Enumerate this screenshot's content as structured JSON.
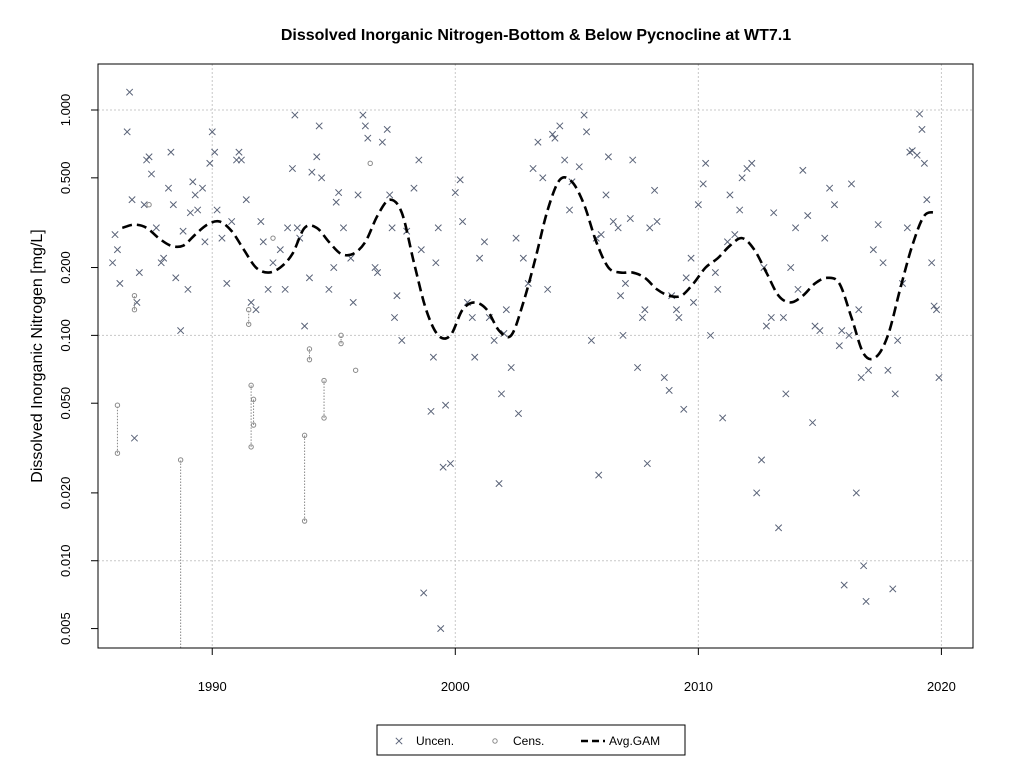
{
  "chart_data": {
    "type": "scatter",
    "title": "Dissolved Inorganic Nitrogen-Bottom & Below Pycnocline at WT7.1",
    "xlabel": "",
    "ylabel": "Dissolved Inorganic Nitrogen [mg/L]",
    "xlim": [
      1985.3,
      2021.3
    ],
    "ylim": [
      0.0041,
      1.6
    ],
    "y_scale": "log",
    "grid": true,
    "legend_position": "bottom-center",
    "x_ticks": [
      1990,
      2000,
      2010,
      2020
    ],
    "x_tick_labels": [
      "1990",
      "2000",
      "2010",
      "2020"
    ],
    "y_ticks": [
      0.005,
      0.01,
      0.02,
      0.05,
      0.1,
      0.2,
      0.5,
      1.0
    ],
    "y_tick_labels": [
      "0.005",
      "0.010",
      "0.020",
      "0.050",
      "0.100",
      "0.200",
      "0.500",
      "1.000"
    ],
    "legend": [
      {
        "label": "Uncen.",
        "symbol": "cross"
      },
      {
        "label": "Cens.",
        "symbol": "circle"
      },
      {
        "label": "Avg.GAM",
        "symbol": "dashed-line"
      }
    ],
    "colors": {
      "points": "#5a6378",
      "censored": "#8a8a8a",
      "gam": "#000000",
      "grid": "#c8c8c8"
    },
    "series": [
      {
        "name": "Uncen.",
        "points": [
          [
            1985.9,
            0.21
          ],
          [
            1986.0,
            0.28
          ],
          [
            1986.1,
            0.24
          ],
          [
            1986.2,
            0.17
          ],
          [
            1986.5,
            0.8
          ],
          [
            1986.6,
            1.2
          ],
          [
            1986.7,
            0.4
          ],
          [
            1986.8,
            0.035
          ],
          [
            1986.9,
            0.14
          ],
          [
            1987.0,
            0.19
          ],
          [
            1987.2,
            0.38
          ],
          [
            1987.3,
            0.6
          ],
          [
            1987.4,
            0.62
          ],
          [
            1987.5,
            0.52
          ],
          [
            1987.7,
            0.3
          ],
          [
            1987.9,
            0.21
          ],
          [
            1988.0,
            0.22
          ],
          [
            1988.2,
            0.45
          ],
          [
            1988.3,
            0.65
          ],
          [
            1988.4,
            0.38
          ],
          [
            1988.5,
            0.18
          ],
          [
            1988.7,
            0.105
          ],
          [
            1988.8,
            0.29
          ],
          [
            1989.0,
            0.16
          ],
          [
            1989.1,
            0.35
          ],
          [
            1989.2,
            0.48
          ],
          [
            1989.3,
            0.42
          ],
          [
            1989.4,
            0.36
          ],
          [
            1989.6,
            0.45
          ],
          [
            1989.7,
            0.26
          ],
          [
            1989.9,
            0.58
          ],
          [
            1990.0,
            0.8
          ],
          [
            1990.1,
            0.65
          ],
          [
            1990.2,
            0.36
          ],
          [
            1990.4,
            0.27
          ],
          [
            1990.6,
            0.17
          ],
          [
            1990.8,
            0.32
          ],
          [
            1991.0,
            0.6
          ],
          [
            1991.1,
            0.65
          ],
          [
            1991.2,
            0.6
          ],
          [
            1991.4,
            0.4
          ],
          [
            1991.6,
            0.14
          ],
          [
            1991.8,
            0.13
          ],
          [
            1992.0,
            0.32
          ],
          [
            1992.1,
            0.26
          ],
          [
            1992.3,
            0.16
          ],
          [
            1992.5,
            0.21
          ],
          [
            1992.8,
            0.24
          ],
          [
            1993.0,
            0.16
          ],
          [
            1993.1,
            0.3
          ],
          [
            1993.3,
            0.55
          ],
          [
            1993.4,
            0.95
          ],
          [
            1993.5,
            0.3
          ],
          [
            1993.6,
            0.27
          ],
          [
            1993.8,
            0.11
          ],
          [
            1994.0,
            0.18
          ],
          [
            1994.1,
            0.53
          ],
          [
            1994.3,
            0.62
          ],
          [
            1994.4,
            0.85
          ],
          [
            1994.5,
            0.5
          ],
          [
            1994.8,
            0.16
          ],
          [
            1995.0,
            0.2
          ],
          [
            1995.1,
            0.39
          ],
          [
            1995.2,
            0.43
          ],
          [
            1995.4,
            0.3
          ],
          [
            1995.7,
            0.22
          ],
          [
            1995.8,
            0.14
          ],
          [
            1996.0,
            0.42
          ],
          [
            1996.2,
            0.95
          ],
          [
            1996.3,
            0.85
          ],
          [
            1996.4,
            0.75
          ],
          [
            1996.7,
            0.2
          ],
          [
            1996.8,
            0.19
          ],
          [
            1997.0,
            0.72
          ],
          [
            1997.2,
            0.82
          ],
          [
            1997.3,
            0.42
          ],
          [
            1997.4,
            0.3
          ],
          [
            1997.5,
            0.12
          ],
          [
            1997.6,
            0.15
          ],
          [
            1997.8,
            0.095
          ],
          [
            1998.0,
            0.29
          ],
          [
            1998.3,
            0.45
          ],
          [
            1998.5,
            0.6
          ],
          [
            1998.6,
            0.24
          ],
          [
            1998.7,
            0.0072
          ],
          [
            1999.0,
            0.046
          ],
          [
            1999.1,
            0.08
          ],
          [
            1999.2,
            0.21
          ],
          [
            1999.3,
            0.3
          ],
          [
            1999.4,
            0.005
          ],
          [
            1999.5,
            0.026
          ],
          [
            1999.6,
            0.049
          ],
          [
            1999.8,
            0.027
          ],
          [
            2000.0,
            0.43
          ],
          [
            2000.2,
            0.49
          ],
          [
            2000.3,
            0.32
          ],
          [
            2000.5,
            0.14
          ],
          [
            2000.7,
            0.12
          ],
          [
            2000.8,
            0.08
          ],
          [
            2001.0,
            0.22
          ],
          [
            2001.2,
            0.26
          ],
          [
            2001.4,
            0.12
          ],
          [
            2001.6,
            0.095
          ],
          [
            2001.8,
            0.022
          ],
          [
            2001.9,
            0.055
          ],
          [
            2002.0,
            0.102
          ],
          [
            2002.1,
            0.13
          ],
          [
            2002.3,
            0.072
          ],
          [
            2002.5,
            0.27
          ],
          [
            2002.6,
            0.045
          ],
          [
            2002.8,
            0.22
          ],
          [
            2003.0,
            0.17
          ],
          [
            2003.2,
            0.55
          ],
          [
            2003.4,
            0.72
          ],
          [
            2003.6,
            0.5
          ],
          [
            2003.8,
            0.16
          ],
          [
            2004.0,
            0.78
          ],
          [
            2004.1,
            0.75
          ],
          [
            2004.3,
            0.85
          ],
          [
            2004.5,
            0.6
          ],
          [
            2004.7,
            0.36
          ],
          [
            2004.8,
            0.48
          ],
          [
            2005.1,
            0.56
          ],
          [
            2005.3,
            0.95
          ],
          [
            2005.4,
            0.8
          ],
          [
            2005.6,
            0.095
          ],
          [
            2005.8,
            0.27
          ],
          [
            2005.9,
            0.024
          ],
          [
            2006.0,
            0.28
          ],
          [
            2006.2,
            0.42
          ],
          [
            2006.3,
            0.62
          ],
          [
            2006.5,
            0.32
          ],
          [
            2006.7,
            0.3
          ],
          [
            2006.8,
            0.15
          ],
          [
            2006.9,
            0.1
          ],
          [
            2007.0,
            0.17
          ],
          [
            2007.2,
            0.33
          ],
          [
            2007.3,
            0.6
          ],
          [
            2007.5,
            0.072
          ],
          [
            2007.7,
            0.12
          ],
          [
            2007.8,
            0.13
          ],
          [
            2007.9,
            0.027
          ],
          [
            2008.0,
            0.3
          ],
          [
            2008.2,
            0.44
          ],
          [
            2008.3,
            0.32
          ],
          [
            2008.6,
            0.065
          ],
          [
            2008.8,
            0.057
          ],
          [
            2008.9,
            0.15
          ],
          [
            2009.1,
            0.13
          ],
          [
            2009.2,
            0.12
          ],
          [
            2009.4,
            0.047
          ],
          [
            2009.5,
            0.18
          ],
          [
            2009.7,
            0.22
          ],
          [
            2009.8,
            0.14
          ],
          [
            2010.0,
            0.38
          ],
          [
            2010.2,
            0.47
          ],
          [
            2010.3,
            0.58
          ],
          [
            2010.5,
            0.1
          ],
          [
            2010.7,
            0.19
          ],
          [
            2010.8,
            0.16
          ],
          [
            2011.0,
            0.043
          ],
          [
            2011.2,
            0.26
          ],
          [
            2011.3,
            0.42
          ],
          [
            2011.5,
            0.28
          ],
          [
            2011.7,
            0.36
          ],
          [
            2011.8,
            0.5
          ],
          [
            2012.0,
            0.55
          ],
          [
            2012.2,
            0.58
          ],
          [
            2012.4,
            0.02
          ],
          [
            2012.6,
            0.028
          ],
          [
            2012.7,
            0.2
          ],
          [
            2012.8,
            0.11
          ],
          [
            2013.0,
            0.12
          ],
          [
            2013.1,
            0.35
          ],
          [
            2013.3,
            0.014
          ],
          [
            2013.5,
            0.12
          ],
          [
            2013.6,
            0.055
          ],
          [
            2013.8,
            0.2
          ],
          [
            2014.0,
            0.3
          ],
          [
            2014.1,
            0.16
          ],
          [
            2014.3,
            0.54
          ],
          [
            2014.5,
            0.34
          ],
          [
            2014.7,
            0.041
          ],
          [
            2014.8,
            0.11
          ],
          [
            2015.0,
            0.105
          ],
          [
            2015.2,
            0.27
          ],
          [
            2015.4,
            0.45
          ],
          [
            2015.6,
            0.38
          ],
          [
            2015.8,
            0.09
          ],
          [
            2015.9,
            0.105
          ],
          [
            2016.0,
            0.0078
          ],
          [
            2016.2,
            0.1
          ],
          [
            2016.3,
            0.47
          ],
          [
            2016.5,
            0.02
          ],
          [
            2016.6,
            0.13
          ],
          [
            2016.7,
            0.065
          ],
          [
            2016.8,
            0.0095
          ],
          [
            2016.9,
            0.0066
          ],
          [
            2017.0,
            0.07
          ],
          [
            2017.2,
            0.24
          ],
          [
            2017.4,
            0.31
          ],
          [
            2017.6,
            0.21
          ],
          [
            2017.8,
            0.07
          ],
          [
            2018.0,
            0.0075
          ],
          [
            2018.1,
            0.055
          ],
          [
            2018.2,
            0.095
          ],
          [
            2018.4,
            0.17
          ],
          [
            2018.6,
            0.3
          ],
          [
            2018.7,
            0.65
          ],
          [
            2018.8,
            0.66
          ],
          [
            2019.0,
            0.63
          ],
          [
            2019.1,
            0.96
          ],
          [
            2019.2,
            0.82
          ],
          [
            2019.3,
            0.58
          ],
          [
            2019.4,
            0.4
          ],
          [
            2019.6,
            0.21
          ],
          [
            2019.7,
            0.135
          ],
          [
            2019.8,
            0.13
          ],
          [
            2019.9,
            0.065
          ]
        ]
      },
      {
        "name": "Cens.",
        "intervals": [
          [
            1986.1,
            0.03,
            0.049
          ],
          [
            1986.8,
            0.13,
            0.15
          ],
          [
            1987.4,
            0.38,
            0.38
          ],
          [
            1988.7,
            0.0041,
            0.028
          ],
          [
            1991.5,
            0.112,
            0.13
          ],
          [
            1991.6,
            0.032,
            0.06
          ],
          [
            1991.7,
            0.04,
            0.052
          ],
          [
            1993.8,
            0.015,
            0.036
          ],
          [
            1994.0,
            0.078,
            0.087
          ],
          [
            1994.6,
            0.043,
            0.063
          ],
          [
            1995.3,
            0.092,
            0.1
          ],
          [
            1995.9,
            0.07,
            0.07
          ],
          [
            1996.5,
            0.58,
            0.58
          ],
          [
            1992.5,
            0.27,
            0.27
          ]
        ]
      },
      {
        "name": "Avg.GAM",
        "x": [
          1986.3,
          1986.8,
          1987.3,
          1987.8,
          1988.3,
          1988.8,
          1989.3,
          1989.8,
          1990.3,
          1990.8,
          1991.3,
          1991.8,
          1992.3,
          1992.8,
          1993.3,
          1993.8,
          1994.3,
          1994.8,
          1995.3,
          1995.8,
          1996.3,
          1996.8,
          1997.3,
          1997.8,
          1998.3,
          1998.8,
          1999.3,
          1999.8,
          2000.3,
          2000.8,
          2001.3,
          2001.8,
          2002.3,
          2002.8,
          2003.3,
          2003.8,
          2004.3,
          2004.8,
          2005.3,
          2005.8,
          2006.3,
          2006.8,
          2007.3,
          2007.8,
          2008.3,
          2008.8,
          2009.3,
          2009.8,
          2010.3,
          2010.8,
          2011.3,
          2011.8,
          2012.3,
          2012.8,
          2013.3,
          2013.8,
          2014.3,
          2014.8,
          2015.3,
          2015.8,
          2016.3,
          2016.8,
          2017.3,
          2017.8,
          2018.3,
          2018.8,
          2019.3,
          2019.8
        ],
        "y": [
          0.3,
          0.31,
          0.3,
          0.27,
          0.25,
          0.25,
          0.28,
          0.31,
          0.32,
          0.29,
          0.24,
          0.2,
          0.19,
          0.2,
          0.23,
          0.3,
          0.3,
          0.26,
          0.23,
          0.23,
          0.26,
          0.34,
          0.4,
          0.35,
          0.21,
          0.13,
          0.1,
          0.1,
          0.13,
          0.14,
          0.13,
          0.105,
          0.1,
          0.14,
          0.22,
          0.36,
          0.49,
          0.48,
          0.38,
          0.26,
          0.2,
          0.19,
          0.19,
          0.18,
          0.16,
          0.15,
          0.15,
          0.17,
          0.2,
          0.22,
          0.25,
          0.27,
          0.24,
          0.19,
          0.15,
          0.14,
          0.15,
          0.17,
          0.18,
          0.17,
          0.12,
          0.083,
          0.08,
          0.1,
          0.16,
          0.25,
          0.34,
          0.35
        ]
      }
    ]
  }
}
